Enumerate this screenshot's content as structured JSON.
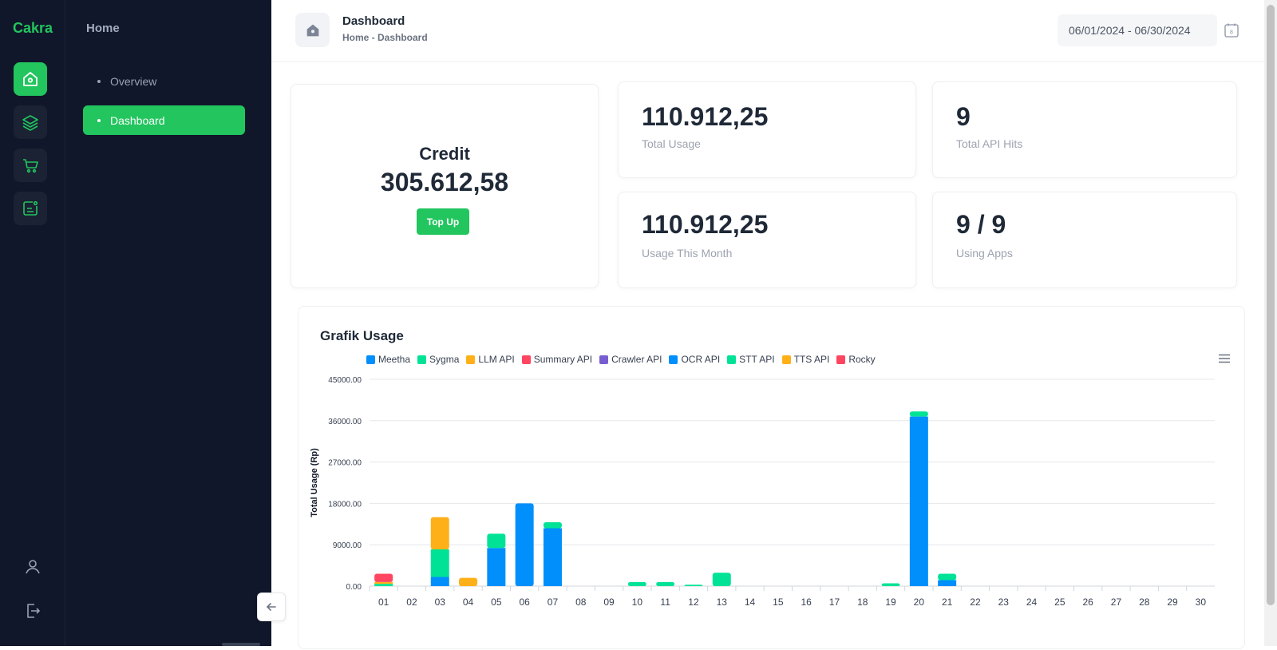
{
  "app": {
    "brand": "Cakra"
  },
  "rail": {
    "items": [
      {
        "icon": "home-icon",
        "active": true
      },
      {
        "icon": "layers-icon",
        "active": false
      },
      {
        "icon": "cart-icon",
        "active": false
      },
      {
        "icon": "report-icon",
        "active": false
      }
    ],
    "bottom": [
      {
        "icon": "user-icon"
      },
      {
        "icon": "logout-icon"
      }
    ]
  },
  "sidebar": {
    "title": "Home",
    "items": [
      {
        "label": "Overview",
        "active": false
      },
      {
        "label": "Dashboard",
        "active": true
      }
    ]
  },
  "header": {
    "title": "Dashboard",
    "breadcrumb": "Home - Dashboard",
    "date_range": "06/01/2024 - 06/30/2024",
    "calendar_day": "8"
  },
  "credit": {
    "title": "Credit",
    "value": "305.612,58",
    "button": "Top Up"
  },
  "stats": [
    {
      "value": "110.912,25",
      "label": "Total Usage"
    },
    {
      "value": "9",
      "label": "Total API Hits"
    },
    {
      "value": "110.912,25",
      "label": "Usage This Month"
    },
    {
      "value": "9 / 9",
      "label": "Using Apps"
    }
  ],
  "chart_data": {
    "type": "bar",
    "stacked": true,
    "title": "Grafik Usage",
    "ylabel": "Total Usage (Rp)",
    "ylim": [
      0,
      45000
    ],
    "yticks": [
      "0.00",
      "9000.00",
      "18000.00",
      "27000.00",
      "36000.00",
      "45000.00"
    ],
    "categories": [
      "01",
      "02",
      "03",
      "04",
      "05",
      "06",
      "07",
      "08",
      "09",
      "10",
      "11",
      "12",
      "13",
      "14",
      "15",
      "16",
      "17",
      "18",
      "19",
      "20",
      "21",
      "22",
      "23",
      "24",
      "25",
      "26",
      "27",
      "28",
      "29",
      "30"
    ],
    "series": [
      {
        "name": "Meetha",
        "color": "#008ffb",
        "values": [
          0,
          0,
          2000,
          0,
          8300,
          18000,
          12600,
          0,
          0,
          0,
          0,
          0,
          0,
          0,
          0,
          0,
          0,
          0,
          0,
          36900,
          1300,
          0,
          0,
          0,
          0,
          0,
          0,
          0,
          0,
          0
        ]
      },
      {
        "name": "Sygma",
        "color": "#00e396",
        "values": [
          500,
          0,
          6000,
          0,
          3100,
          0,
          1300,
          0,
          0,
          900,
          900,
          300,
          2900,
          0,
          0,
          0,
          0,
          0,
          600,
          1100,
          1400,
          0,
          0,
          0,
          0,
          0,
          0,
          0,
          0,
          0
        ]
      },
      {
        "name": "LLM API",
        "color": "#feb019",
        "values": [
          400,
          0,
          7000,
          1800,
          0,
          0,
          0,
          0,
          0,
          0,
          0,
          0,
          0,
          0,
          0,
          0,
          0,
          0,
          0,
          0,
          0,
          0,
          0,
          0,
          0,
          0,
          0,
          0,
          0,
          0
        ]
      },
      {
        "name": "Summary API",
        "color": "#ff4560",
        "values": [
          1800,
          0,
          0,
          0,
          0,
          0,
          0,
          0,
          0,
          0,
          0,
          0,
          0,
          0,
          0,
          0,
          0,
          0,
          0,
          0,
          0,
          0,
          0,
          0,
          0,
          0,
          0,
          0,
          0,
          0
        ]
      },
      {
        "name": "Crawler API",
        "color": "#775dd0",
        "values": [
          0,
          0,
          0,
          0,
          0,
          0,
          0,
          0,
          0,
          0,
          0,
          0,
          0,
          0,
          0,
          0,
          0,
          0,
          0,
          0,
          0,
          0,
          0,
          0,
          0,
          0,
          0,
          0,
          0,
          0
        ]
      },
      {
        "name": "OCR API",
        "color": "#008ffb",
        "values": [
          0,
          0,
          0,
          0,
          0,
          0,
          0,
          0,
          0,
          0,
          0,
          0,
          0,
          0,
          0,
          0,
          0,
          0,
          0,
          0,
          0,
          0,
          0,
          0,
          0,
          0,
          0,
          0,
          0,
          0
        ]
      },
      {
        "name": "STT API",
        "color": "#00e396",
        "values": [
          0,
          0,
          0,
          0,
          0,
          0,
          0,
          0,
          0,
          0,
          0,
          0,
          0,
          0,
          0,
          0,
          0,
          0,
          0,
          0,
          0,
          0,
          0,
          0,
          0,
          0,
          0,
          0,
          0,
          0
        ]
      },
      {
        "name": "TTS API",
        "color": "#feb019",
        "values": [
          0,
          0,
          0,
          0,
          0,
          0,
          0,
          0,
          0,
          0,
          0,
          0,
          0,
          0,
          0,
          0,
          0,
          0,
          0,
          0,
          0,
          0,
          0,
          0,
          0,
          0,
          0,
          0,
          0,
          0
        ]
      },
      {
        "name": "Rocky",
        "color": "#ff4560",
        "values": [
          0,
          0,
          0,
          0,
          0,
          0,
          0,
          0,
          0,
          0,
          0,
          0,
          0,
          0,
          0,
          0,
          0,
          0,
          0,
          0,
          0,
          0,
          0,
          0,
          0,
          0,
          0,
          0,
          0,
          0
        ]
      }
    ],
    "grid": true,
    "legend": "top-left"
  }
}
